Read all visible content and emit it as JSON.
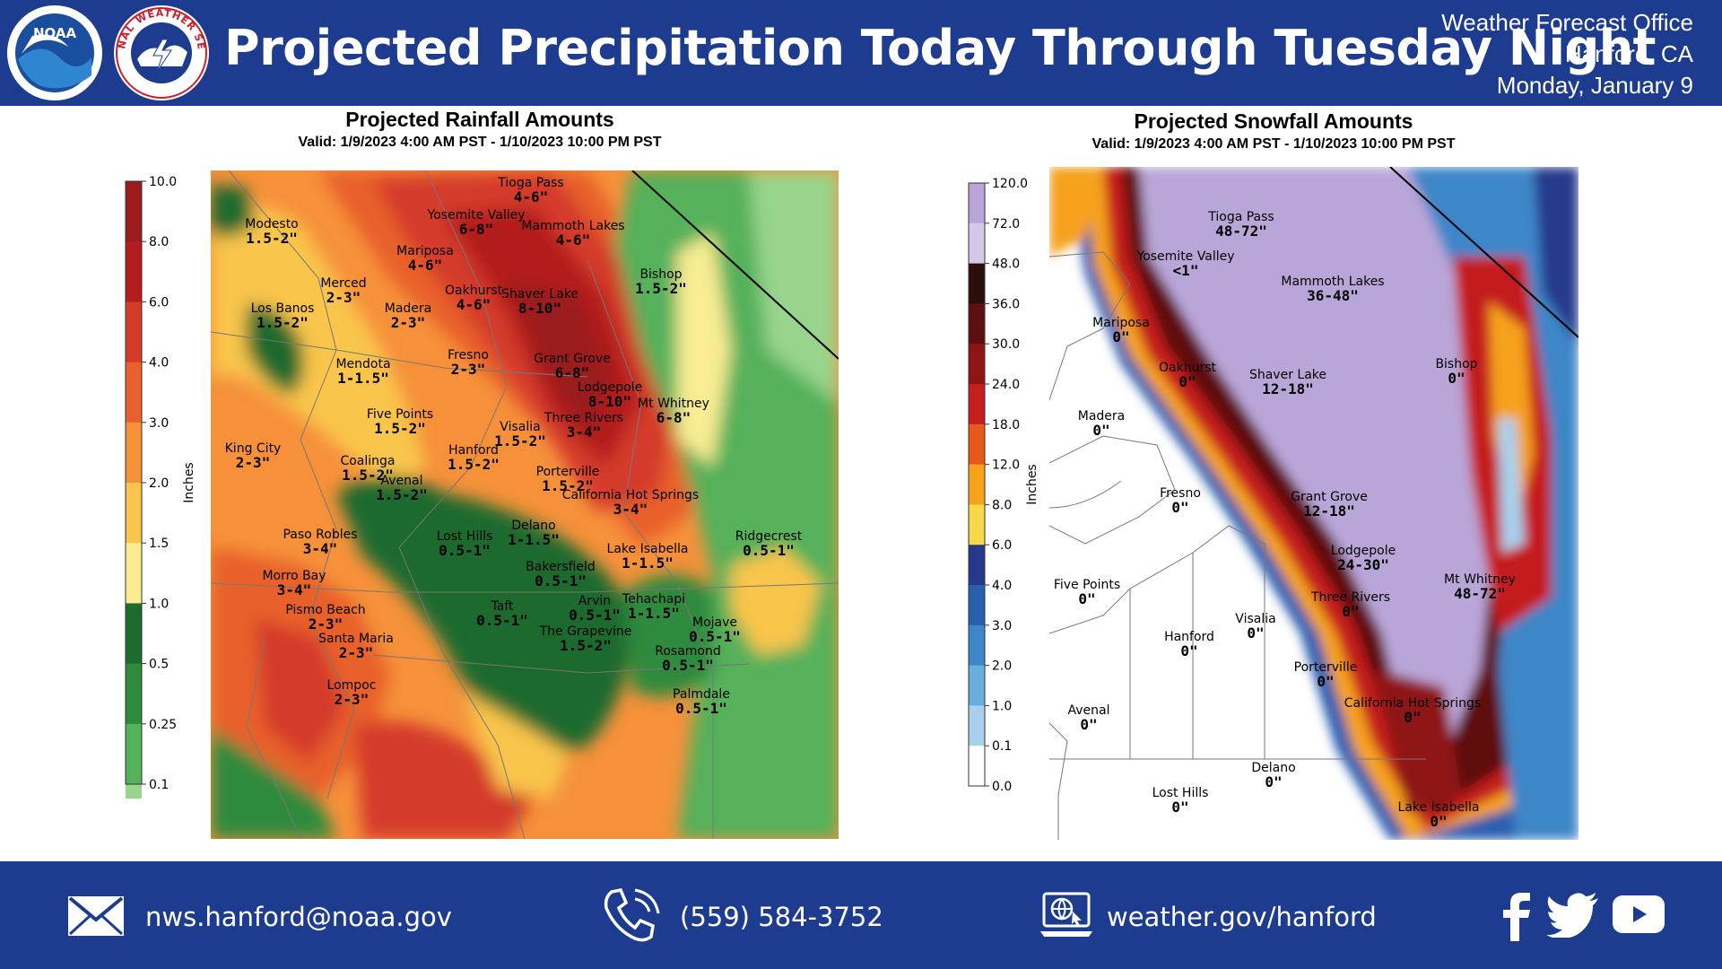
{
  "header": {
    "title": "Projected Precipitation Today Through Tuesday Night",
    "office_line1": "Weather Forecast Office",
    "office_line2": "Hanford, CA",
    "office_line3": "Monday, January 9",
    "noaa_logo_text": "NOAA",
    "nws_logo_text": "NATIONAL WEATHER SERVICE",
    "colors": {
      "banner": "#1d3c8f",
      "text": "#ffffff"
    }
  },
  "rain": {
    "title": "Projected Rainfall Amounts",
    "valid": "Valid: 1/9/2023 4:00 AM PST - 1/10/2023 10:00 PM PST",
    "unit": "Inches",
    "colorbar": {
      "ticks": [
        "10.0",
        "8.0",
        "6.0",
        "4.0",
        "3.0",
        "2.0",
        "1.5",
        "1.0",
        "0.5",
        "0.25",
        "0.1"
      ],
      "colors": [
        "#9b1c1c",
        "#b31d1d",
        "#d43a2a",
        "#e8602c",
        "#f6913a",
        "#f9c54c",
        "#f9ec93",
        "#1e6b2f",
        "#2f8a3c",
        "#55b15a",
        "#98d48c"
      ]
    },
    "points": [
      {
        "name": "Tioga Pass",
        "value": "4-6\""
      },
      {
        "name": "Modesto",
        "value": "1.5-2\""
      },
      {
        "name": "Yosemite Valley",
        "value": "6-8\""
      },
      {
        "name": "Mammoth Lakes",
        "value": "4-6\""
      },
      {
        "name": "Mariposa",
        "value": "4-6\""
      },
      {
        "name": "Merced",
        "value": "2-3\""
      },
      {
        "name": "Oakhurst",
        "value": "4-6\""
      },
      {
        "name": "Shaver Lake",
        "value": "8-10\""
      },
      {
        "name": "Bishop",
        "value": "1.5-2\""
      },
      {
        "name": "Los Banos",
        "value": "1.5-2\""
      },
      {
        "name": "Madera",
        "value": "2-3\""
      },
      {
        "name": "Mendota",
        "value": "1-1.5\""
      },
      {
        "name": "Fresno",
        "value": "2-3\""
      },
      {
        "name": "Grant Grove",
        "value": "6-8\""
      },
      {
        "name": "Lodgepole",
        "value": "8-10\""
      },
      {
        "name": "Mt Whitney",
        "value": "6-8\""
      },
      {
        "name": "Five Points",
        "value": "1.5-2\""
      },
      {
        "name": "Three Rivers",
        "value": "3-4\""
      },
      {
        "name": "Visalia",
        "value": "1.5-2\""
      },
      {
        "name": "King City",
        "value": "2-3\""
      },
      {
        "name": "Hanford",
        "value": "1.5-2\""
      },
      {
        "name": "Coalinga",
        "value": "1.5-2\""
      },
      {
        "name": "Porterville",
        "value": "1.5-2\""
      },
      {
        "name": "Avenal",
        "value": "1.5-2\""
      },
      {
        "name": "California Hot Springs",
        "value": "3-4\""
      },
      {
        "name": "Delano",
        "value": "1-1.5\""
      },
      {
        "name": "Paso Robles",
        "value": "3-4\""
      },
      {
        "name": "Lost Hills",
        "value": "0.5-1\""
      },
      {
        "name": "Ridgecrest",
        "value": "0.5-1\""
      },
      {
        "name": "Lake Isabella",
        "value": "1-1.5\""
      },
      {
        "name": "Bakersfield",
        "value": "0.5-1\""
      },
      {
        "name": "Morro Bay",
        "value": "3-4\""
      },
      {
        "name": "Pismo Beach",
        "value": "2-3\""
      },
      {
        "name": "Tehachapi",
        "value": "1-1.5\""
      },
      {
        "name": "Arvin",
        "value": "0.5-1\""
      },
      {
        "name": "Taft",
        "value": "0.5-1\""
      },
      {
        "name": "Mojave",
        "value": "0.5-1\""
      },
      {
        "name": "The Grapevine",
        "value": "1.5-2\""
      },
      {
        "name": "Santa Maria",
        "value": "2-3\""
      },
      {
        "name": "Rosamond",
        "value": "0.5-1\""
      },
      {
        "name": "Lompoc",
        "value": "2-3\""
      },
      {
        "name": "Palmdale",
        "value": "0.5-1\""
      }
    ]
  },
  "snow": {
    "title": "Projected Snowfall Amounts",
    "valid": "Valid: 1/9/2023 4:00 AM PST - 1/10/2023 10:00 PM PST",
    "unit": "Inches",
    "colorbar": {
      "ticks": [
        "120.0",
        "72.0",
        "48.0",
        "36.0",
        "30.0",
        "24.0",
        "18.0",
        "12.0",
        "8.0",
        "6.0",
        "4.0",
        "3.0",
        "2.0",
        "1.0",
        "0.1",
        "0.0"
      ],
      "colors": [
        "#b9a6d8",
        "#d4c8e8",
        "#2a0d0d",
        "#5e1010",
        "#8f1414",
        "#c41e1e",
        "#e8581a",
        "#f6a21a",
        "#f7d848",
        "#253a8c",
        "#2a5fb0",
        "#3d86c8",
        "#6aaedc",
        "#a8d0ec",
        "#ffffff"
      ]
    },
    "points": [
      {
        "name": "Tioga Pass",
        "value": "48-72\""
      },
      {
        "name": "Yosemite Valley",
        "value": "<1\""
      },
      {
        "name": "Mammoth Lakes",
        "value": "36-48\""
      },
      {
        "name": "Mariposa",
        "value": "0\""
      },
      {
        "name": "Oakhurst",
        "value": "0\""
      },
      {
        "name": "Shaver Lake",
        "value": "12-18\""
      },
      {
        "name": "Bishop",
        "value": "0\""
      },
      {
        "name": "Madera",
        "value": "0\""
      },
      {
        "name": "Fresno",
        "value": "0\""
      },
      {
        "name": "Grant Grove",
        "value": "12-18\""
      },
      {
        "name": "Lodgepole",
        "value": "24-30\""
      },
      {
        "name": "Mt Whitney",
        "value": "48-72\""
      },
      {
        "name": "Five Points",
        "value": "0\""
      },
      {
        "name": "Three Rivers",
        "value": "0\""
      },
      {
        "name": "Visalia",
        "value": "0\""
      },
      {
        "name": "Hanford",
        "value": "0\""
      },
      {
        "name": "Porterville",
        "value": "0\""
      },
      {
        "name": "Avenal",
        "value": "0\""
      },
      {
        "name": "California Hot Springs",
        "value": "0\""
      },
      {
        "name": "Delano",
        "value": "0\""
      },
      {
        "name": "Lost Hills",
        "value": "0\""
      },
      {
        "name": "Lake Isabella",
        "value": "0\""
      }
    ]
  },
  "footer": {
    "email": "nws.hanford@noaa.gov",
    "phone": "(559)  584-3752",
    "website": "weather.gov/hanford"
  }
}
